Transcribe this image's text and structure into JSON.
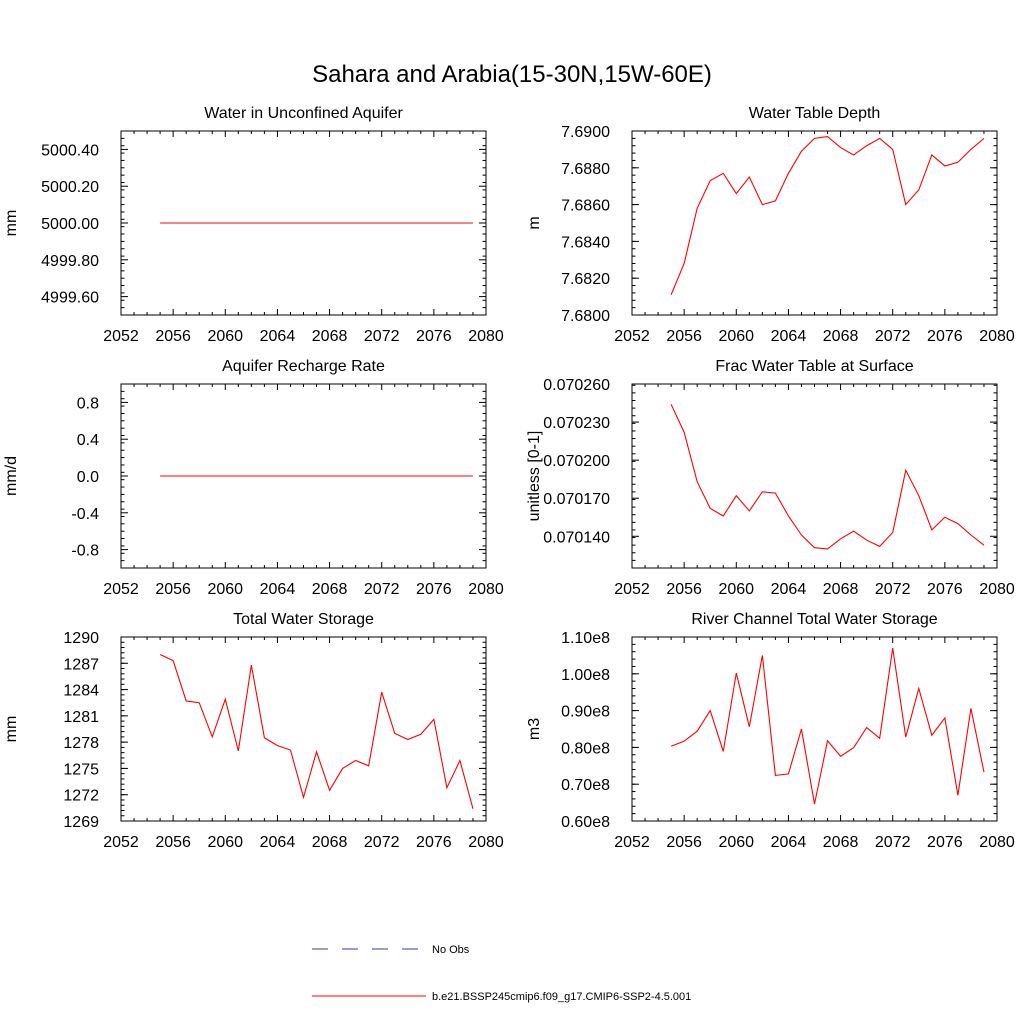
{
  "page": {
    "title": "Sahara and Arabia(15-30N,15W-60E)"
  },
  "legend": {
    "entries": [
      {
        "label": "No Obs",
        "color": "#3a3aa8",
        "style": "dashed"
      },
      {
        "label": "b.e21.BSSP245cmip6.f09_g17.CMIP6-SSP2-4.5.001",
        "color": "#ff0000",
        "style": "solid"
      }
    ]
  },
  "chart_data": [
    {
      "type": "line",
      "title": "Water in Unconfined Aquifer",
      "ylabel": "mm",
      "xlim": [
        2052,
        2080
      ],
      "xticks": [
        2052,
        2056,
        2060,
        2064,
        2068,
        2072,
        2076,
        2080
      ],
      "ylim": [
        4999.5,
        5000.5
      ],
      "yticks": [
        4999.6,
        4999.8,
        5000.0,
        5000.2,
        5000.4
      ],
      "ytick_labels": [
        "4999.60",
        "4999.80",
        "5000.00",
        "5000.20",
        "5000.40"
      ],
      "x": [
        2055,
        2079
      ],
      "series": [
        {
          "color": "#ff0000",
          "values": [
            5000.0,
            5000.0
          ]
        }
      ]
    },
    {
      "type": "line",
      "title": "Water Table Depth",
      "ylabel": "m",
      "xlim": [
        2052,
        2080
      ],
      "xticks": [
        2052,
        2056,
        2060,
        2064,
        2068,
        2072,
        2076,
        2080
      ],
      "ylim": [
        7.68,
        7.69
      ],
      "yticks": [
        7.68,
        7.682,
        7.684,
        7.686,
        7.688,
        7.69
      ],
      "ytick_labels": [
        "7.6800",
        "7.6820",
        "7.6840",
        "7.6860",
        "7.6880",
        "7.6900"
      ],
      "x": [
        2055,
        2056,
        2057,
        2058,
        2059,
        2060,
        2061,
        2062,
        2063,
        2064,
        2065,
        2066,
        2067,
        2068,
        2069,
        2070,
        2071,
        2072,
        2073,
        2074,
        2075,
        2076,
        2077,
        2078,
        2079
      ],
      "series": [
        {
          "color": "#ff0000",
          "values": [
            7.6811,
            7.6828,
            7.6858,
            7.6873,
            7.6877,
            7.6866,
            7.6875,
            7.686,
            7.6862,
            7.6877,
            7.6889,
            7.6896,
            7.6897,
            7.6891,
            7.6887,
            7.6892,
            7.6896,
            7.689,
            7.686,
            7.6868,
            7.6887,
            7.6881,
            7.6883,
            7.689,
            7.6896
          ]
        }
      ]
    },
    {
      "type": "line",
      "title": "Aquifer Recharge Rate",
      "ylabel": "mm/d",
      "xlim": [
        2052,
        2080
      ],
      "xticks": [
        2052,
        2056,
        2060,
        2064,
        2068,
        2072,
        2076,
        2080
      ],
      "ylim": [
        -1.0,
        1.0
      ],
      "yticks": [
        -0.8,
        -0.4,
        0.0,
        0.4,
        0.8
      ],
      "ytick_labels": [
        "-0.8",
        "-0.4",
        "0.0",
        "0.4",
        "0.8"
      ],
      "x": [
        2055,
        2079
      ],
      "series": [
        {
          "color": "#ff0000",
          "values": [
            0.0,
            0.0
          ]
        }
      ]
    },
    {
      "type": "line",
      "title": "Frac Water Table at Surface",
      "ylabel": "unitless [0-1]",
      "xlim": [
        2052,
        2080
      ],
      "xticks": [
        2052,
        2056,
        2060,
        2064,
        2068,
        2072,
        2076,
        2080
      ],
      "ylim": [
        0.070115,
        0.07026
      ],
      "yticks": [
        0.07014,
        0.07017,
        0.0702,
        0.07023,
        0.07026
      ],
      "ytick_labels": [
        "0.070140",
        "0.070170",
        "0.070200",
        "0.070230",
        "0.070260"
      ],
      "x": [
        2055,
        2056,
        2057,
        2058,
        2059,
        2060,
        2061,
        2062,
        2063,
        2064,
        2065,
        2066,
        2067,
        2068,
        2069,
        2070,
        2071,
        2072,
        2073,
        2074,
        2075,
        2076,
        2077,
        2078,
        2079
      ],
      "series": [
        {
          "color": "#ff0000",
          "values": [
            0.070244,
            0.070222,
            0.070183,
            0.070162,
            0.070156,
            0.070172,
            0.07016,
            0.070175,
            0.070174,
            0.070156,
            0.070141,
            0.070131,
            0.07013,
            0.070138,
            0.070144,
            0.070137,
            0.070132,
            0.070143,
            0.070192,
            0.070172,
            0.070145,
            0.070155,
            0.07015,
            0.070141,
            0.070133
          ]
        }
      ]
    },
    {
      "type": "line",
      "title": "Total Water Storage",
      "ylabel": "mm",
      "xlim": [
        2052,
        2080
      ],
      "xticks": [
        2052,
        2056,
        2060,
        2064,
        2068,
        2072,
        2076,
        2080
      ],
      "ylim": [
        1269,
        1290
      ],
      "yticks": [
        1269,
        1272,
        1275,
        1278,
        1281,
        1284,
        1287,
        1290
      ],
      "ytick_labels": [
        "1269",
        "1272",
        "1275",
        "1278",
        "1281",
        "1284",
        "1287",
        "1290"
      ],
      "x": [
        2055,
        2056,
        2057,
        2058,
        2059,
        2060,
        2061,
        2062,
        2063,
        2064,
        2065,
        2066,
        2067,
        2068,
        2069,
        2070,
        2071,
        2072,
        2073,
        2074,
        2075,
        2076,
        2077,
        2078,
        2079
      ],
      "series": [
        {
          "color": "#ff0000",
          "values": [
            1288.0,
            1287.3,
            1282.7,
            1282.5,
            1278.6,
            1282.9,
            1277.0,
            1286.8,
            1278.5,
            1277.6,
            1277.1,
            1271.7,
            1276.9,
            1272.5,
            1275.0,
            1275.9,
            1275.3,
            1283.7,
            1279.0,
            1278.3,
            1278.9,
            1280.6,
            1272.8,
            1275.9,
            1270.4
          ]
        }
      ]
    },
    {
      "type": "line",
      "title": "River Channel Total Water Storage",
      "ylabel": "m3",
      "xlim": [
        2052,
        2080
      ],
      "xticks": [
        2052,
        2056,
        2060,
        2064,
        2068,
        2072,
        2076,
        2080
      ],
      "ylim": [
        60000000,
        110000000
      ],
      "yticks": [
        60000000,
        70000000,
        80000000,
        90000000,
        100000000,
        110000000
      ],
      "ytick_labels": [
        "0.60e8",
        "0.70e8",
        "0.80e8",
        "0.90e8",
        "1.00e8",
        "1.10e8"
      ],
      "x": [
        2055,
        2056,
        2057,
        2058,
        2059,
        2060,
        2061,
        2062,
        2063,
        2064,
        2065,
        2066,
        2067,
        2068,
        2069,
        2070,
        2071,
        2072,
        2073,
        2074,
        2075,
        2076,
        2077,
        2078,
        2079
      ],
      "series": [
        {
          "color": "#ff0000",
          "values": [
            80300000,
            81700000,
            84400000,
            90000000,
            78900000,
            100200000,
            85600000,
            105000000,
            72400000,
            72800000,
            85000000,
            64600000,
            81800000,
            77600000,
            79900000,
            85400000,
            82500000,
            107000000,
            82800000,
            96000000,
            83300000,
            88000000,
            67000000,
            90600000,
            73300000
          ]
        }
      ]
    }
  ]
}
